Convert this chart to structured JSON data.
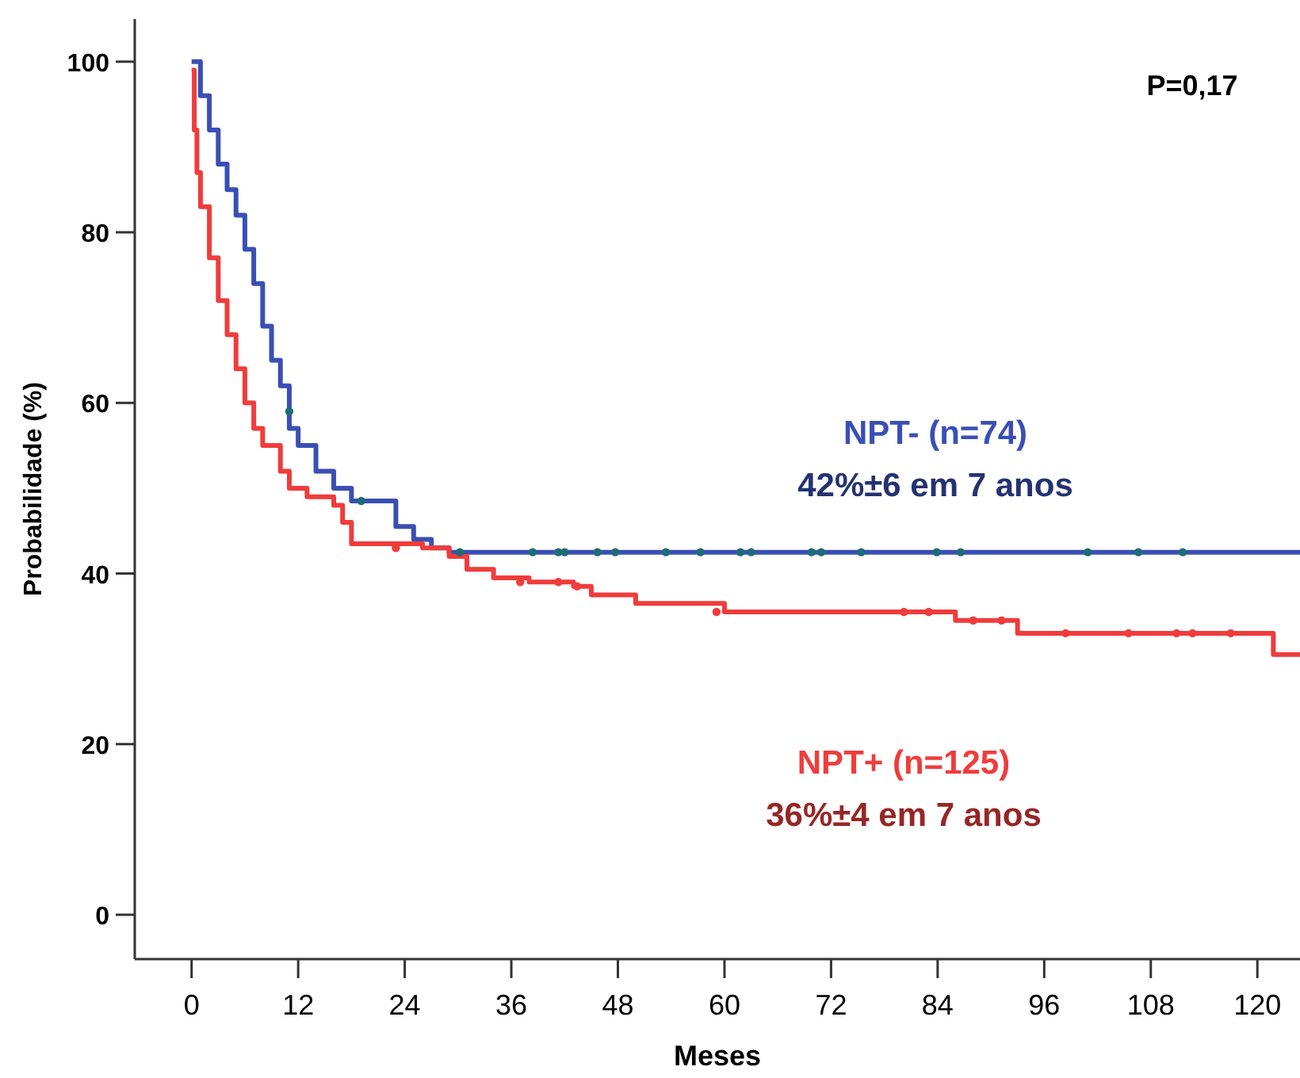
{
  "chart_data": {
    "type": "step",
    "xlabel": "Meses",
    "ylabel": "Probabilidade (%)",
    "xlim": [
      -6.4,
      124.8
    ],
    "ylim": [
      -5.2,
      105
    ],
    "xticks": [
      0,
      12,
      24,
      36,
      48,
      60,
      72,
      84,
      96,
      108,
      120
    ],
    "yticks": [
      0,
      20,
      40,
      60,
      80,
      100
    ],
    "grid": false,
    "legend": false,
    "line_style": "solid",
    "annotations": [
      "P=0,17",
      "42%±6 em 7 anos",
      "36%±4 em 7 anos"
    ],
    "series": [
      {
        "name": "NPT- (n=74)",
        "color": "#3a4fb5",
        "x": [
          0,
          1,
          2,
          3,
          4,
          5,
          6,
          7,
          8,
          9,
          10,
          11,
          12,
          14,
          16,
          18,
          22,
          23,
          25,
          27,
          29,
          124.8
        ],
        "values": [
          100,
          96,
          92,
          88,
          85,
          82,
          78,
          74,
          69,
          65,
          62,
          57,
          55,
          52,
          50,
          48.5,
          48.5,
          45.5,
          44,
          43,
          42.5,
          42.5
        ]
      },
      {
        "name": "NPT+ (n=125)",
        "color": "#f03c3c",
        "x": [
          0,
          0.3,
          0.6,
          1,
          2,
          3,
          4,
          5,
          6,
          7,
          8,
          10,
          11,
          13,
          16,
          17,
          18,
          26,
          29,
          31,
          34,
          38,
          43,
          45,
          50,
          60,
          84,
          86,
          93,
          121.8,
          124.8
        ],
        "values": [
          99,
          92,
          87,
          83,
          77,
          72,
          68,
          64,
          60,
          57,
          55,
          52,
          50,
          49,
          48,
          46,
          43.5,
          43,
          42,
          40.5,
          39.5,
          39,
          38.5,
          37.5,
          36.5,
          35.5,
          35.5,
          34.5,
          33,
          30.5,
          30.5
        ]
      },
      {
        "type": "scatter",
        "marker": "circle",
        "color": "#1f6b78",
        "x": [
          11,
          19.1,
          30.2,
          38.4,
          41.3,
          42,
          45.7,
          47.7,
          53.4,
          57.3,
          61.8,
          63,
          69.8,
          70.9,
          75.4,
          83.9,
          86.6,
          100.9,
          106.6,
          111.6
        ],
        "values": [
          59,
          48.5,
          42.5,
          42.5,
          42.5,
          42.5,
          42.5,
          42.5,
          42.5,
          42.5,
          42.5,
          42.5,
          42.5,
          42.5,
          42.5,
          42.5,
          42.5,
          42.5,
          42.5,
          42.5
        ]
      },
      {
        "type": "scatter",
        "marker": "circle",
        "color": "#f03c3c",
        "x": [
          23,
          37,
          41.3,
          43.4,
          59.1,
          80.2,
          83,
          88,
          91.2,
          98.4,
          105.5,
          110.9,
          112.7,
          117
        ],
        "values": [
          43,
          39,
          39,
          38.5,
          35.5,
          35.5,
          35.5,
          34.5,
          34.5,
          33,
          33,
          33,
          33,
          33
        ]
      }
    ]
  }
}
